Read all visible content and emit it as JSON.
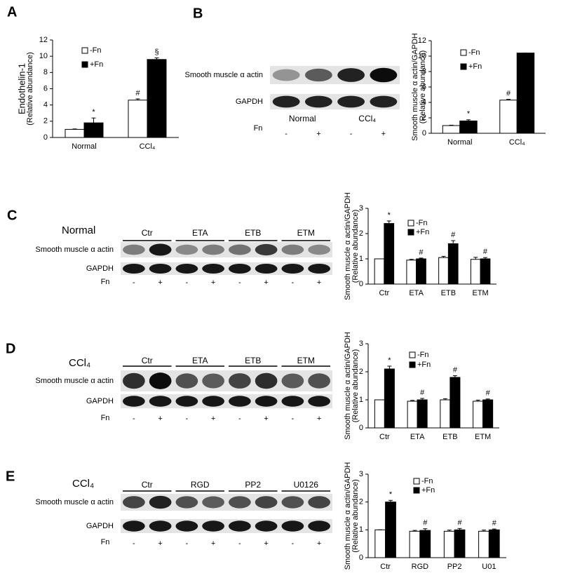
{
  "panels": [
    "A",
    "B",
    "C",
    "D",
    "E"
  ],
  "chart_data": [
    {
      "type": "bar",
      "ylabel": [
        "Endothelin-1",
        "(Relative abundance)"
      ],
      "categories": [
        "Normal",
        "CCl₄"
      ],
      "series": [
        {
          "name": "-Fn",
          "color": "#ffffff",
          "values": [
            1.0,
            4.6
          ],
          "errors": [
            0.05,
            0.15
          ],
          "markers": [
            null,
            "#"
          ]
        },
        {
          "name": "+Fn",
          "color": "#000000",
          "values": [
            1.8,
            9.6
          ],
          "errors": [
            0.6,
            0.2
          ],
          "markers": [
            "*",
            "§"
          ]
        }
      ],
      "ylim": [
        0,
        12
      ],
      "yticks": [
        0,
        2,
        4,
        6,
        8,
        10,
        12
      ]
    },
    {
      "type": "bar",
      "ylabel": [
        "Smooth muscle α actin/GAPDH",
        "(Relative abundance)"
      ],
      "categories": [
        "Normal",
        "CCl₄"
      ],
      "series": [
        {
          "name": "-Fn",
          "color": "#ffffff",
          "values": [
            1.0,
            4.3
          ],
          "errors": [
            0.05,
            0.1
          ],
          "markers": [
            null,
            "#"
          ]
        },
        {
          "name": "+Fn",
          "color": "#000000",
          "values": [
            1.6,
            10.4
          ],
          "errors": [
            0.15,
            0
          ],
          "markers": [
            "*",
            null
          ]
        }
      ],
      "ylim": [
        0,
        12
      ],
      "yticks": [
        0,
        2,
        4,
        6,
        8,
        10,
        12
      ]
    },
    {
      "type": "bar",
      "ylabel": [
        "Smooth muscle α actin/GAPDH",
        "(Relative abundance)"
      ],
      "categories": [
        "Ctr",
        "ETA",
        "ETB",
        "ETM"
      ],
      "series": [
        {
          "name": "-Fn",
          "color": "#ffffff",
          "values": [
            1.0,
            0.95,
            1.05,
            0.98
          ],
          "errors": [
            0,
            0.03,
            0.05,
            0.08
          ],
          "markers": [
            null,
            null,
            null,
            null
          ]
        },
        {
          "name": "+Fn",
          "color": "#000000",
          "values": [
            2.4,
            1.0,
            1.6,
            1.0
          ],
          "errors": [
            0.1,
            0.03,
            0.12,
            0.05
          ],
          "markers": [
            "*",
            "#",
            "#",
            "#"
          ]
        }
      ],
      "ylim": [
        0,
        3
      ],
      "yticks": [
        0,
        1,
        2,
        3
      ]
    },
    {
      "type": "bar",
      "ylabel": [
        "Smooth muscle α actin/GAPDH",
        "(Relative abundance)"
      ],
      "categories": [
        "Ctr",
        "ETA",
        "ETB",
        "ETM"
      ],
      "series": [
        {
          "name": "-Fn",
          "color": "#ffffff",
          "values": [
            1.0,
            0.95,
            1.0,
            0.95
          ],
          "errors": [
            0,
            0.03,
            0.04,
            0.04
          ],
          "markers": [
            null,
            null,
            null,
            null
          ]
        },
        {
          "name": "+Fn",
          "color": "#000000",
          "values": [
            2.1,
            1.0,
            1.8,
            1.0
          ],
          "errors": [
            0.1,
            0.05,
            0.06,
            0.03
          ],
          "markers": [
            "*",
            "#",
            "#",
            "#"
          ]
        }
      ],
      "ylim": [
        0,
        3
      ],
      "yticks": [
        0,
        1,
        2,
        3
      ]
    },
    {
      "type": "bar",
      "ylabel": [
        "Smooth muscle α actin/GAPDH",
        "(Relative abundance)"
      ],
      "categories": [
        "Ctr",
        "RGD",
        "PP2",
        "U01"
      ],
      "series": [
        {
          "name": "-Fn",
          "color": "#ffffff",
          "values": [
            1.0,
            0.95,
            0.95,
            0.95
          ],
          "errors": [
            0,
            0.03,
            0.04,
            0.04
          ],
          "markers": [
            null,
            null,
            null,
            null
          ]
        },
        {
          "name": "+Fn",
          "color": "#000000",
          "values": [
            2.0,
            0.98,
            1.0,
            1.0
          ],
          "errors": [
            0.06,
            0.06,
            0.05,
            0.03
          ],
          "markers": [
            "*",
            "#",
            "#",
            "#"
          ]
        }
      ],
      "ylim": [
        0,
        3
      ],
      "yticks": [
        0,
        1,
        2,
        3
      ]
    }
  ],
  "blots": [
    {
      "rows": [
        "Smooth muscle  α actin",
        "GAPDH"
      ],
      "groups": [
        "Normal",
        "CCl₄"
      ],
      "fn_label": "Fn",
      "signs": [
        "-",
        "+",
        "-",
        "+"
      ]
    },
    {
      "condition": "Normal",
      "rows": [
        "Smooth muscle  α actin",
        "GAPDH"
      ],
      "groups": [
        "Ctr",
        "ETA",
        "ETB",
        "ETM"
      ],
      "fn_label": "Fn",
      "signs": [
        "-",
        "+",
        "-",
        "+",
        "-",
        "+",
        "-",
        "+"
      ]
    },
    {
      "condition": "CCl₄",
      "rows": [
        "Smooth muscle  α actin",
        "GAPDH"
      ],
      "groups": [
        "Ctr",
        "ETA",
        "ETB",
        "ETM"
      ],
      "fn_label": "Fn",
      "signs": [
        "-",
        "+",
        "-",
        "+",
        "-",
        "+",
        "-",
        "+"
      ]
    },
    {
      "condition": "CCl₄",
      "rows": [
        "Smooth muscle  α actin",
        "GAPDH"
      ],
      "groups": [
        "Ctr",
        "RGD",
        "PP2",
        "U0126"
      ],
      "fn_label": "Fn",
      "signs": [
        "-",
        "+",
        "-",
        "+",
        "-",
        "+",
        "-",
        "+"
      ]
    }
  ]
}
